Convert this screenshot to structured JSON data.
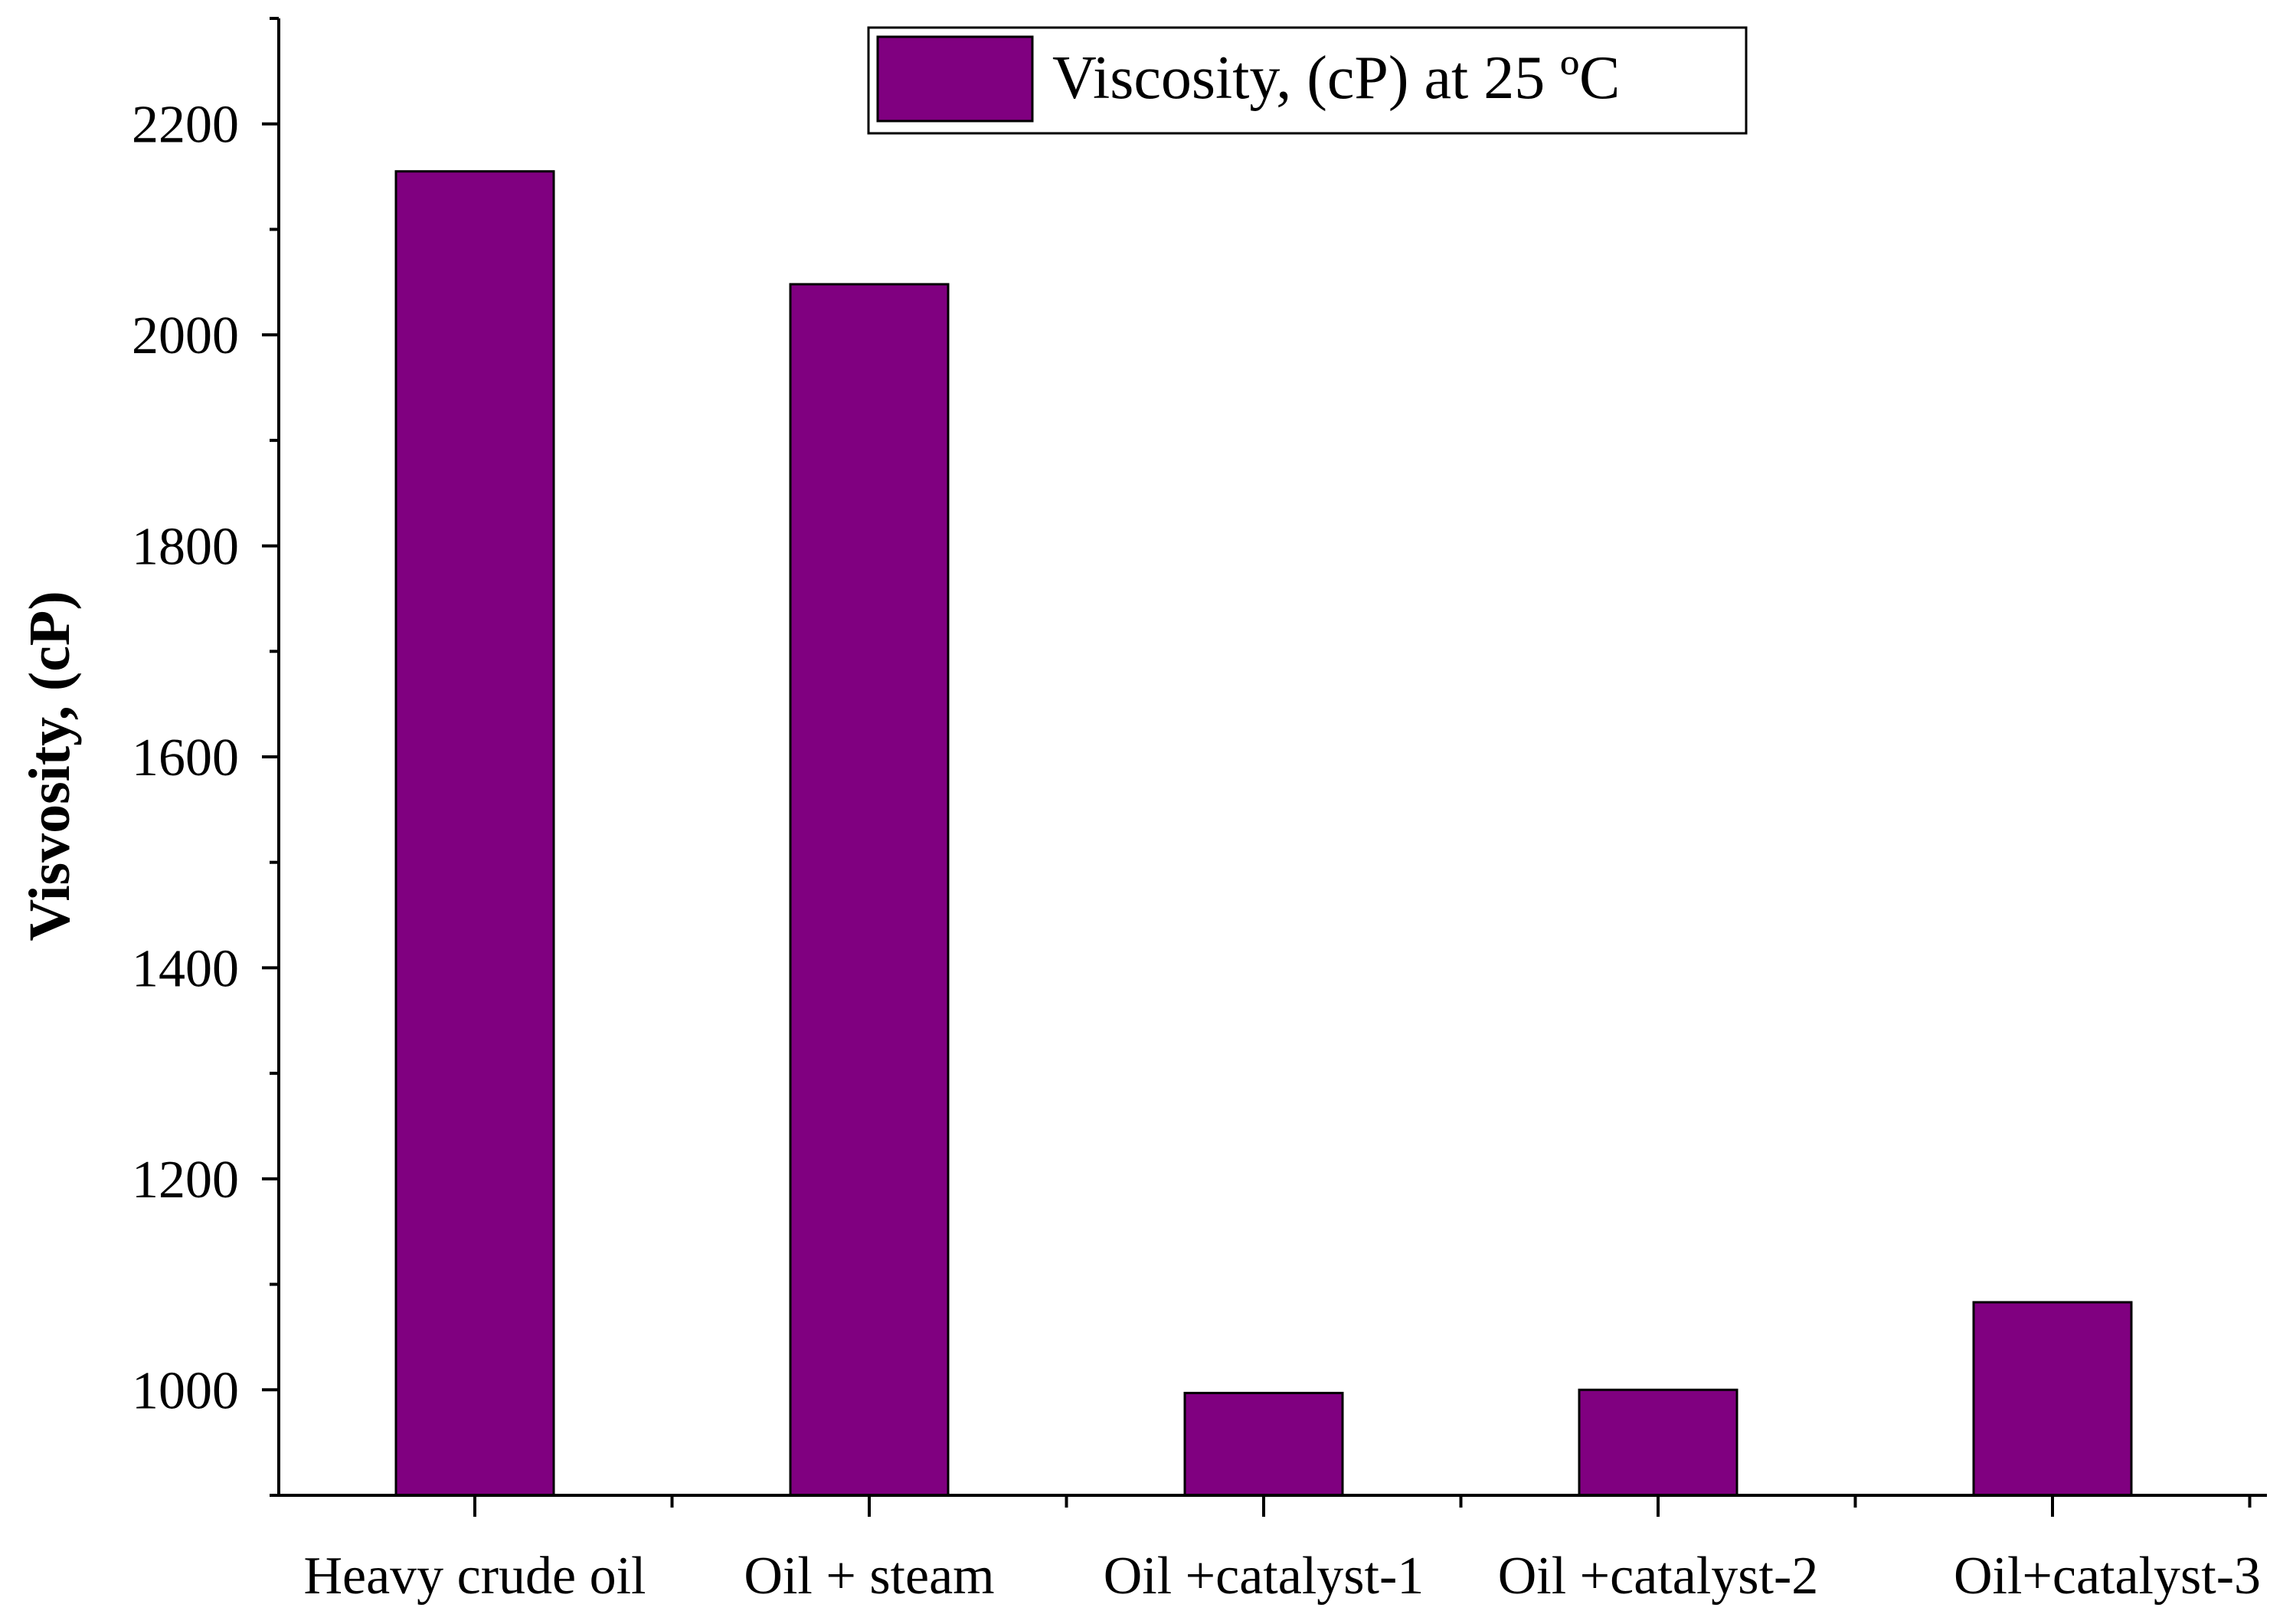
{
  "colors": {
    "bar": "#800080",
    "axis": "#000000",
    "background": "#ffffff"
  },
  "chart_data": {
    "type": "bar",
    "title": "",
    "xlabel": "",
    "ylabel": "Visvosity,  (cP)",
    "ylim": [
      900,
      2300
    ],
    "yticks": [
      1000,
      1200,
      1400,
      1600,
      1800,
      2000,
      2200
    ],
    "ytick_labels": [
      "1000",
      "1200",
      "1400",
      "1600",
      "1800",
      "2000",
      "2200"
    ],
    "yminor_step": 100,
    "categories": [
      "Heavy crude oil",
      "Oil + steam",
      "Oil +catalyst-1",
      "Oil +catalyst-2",
      "Oil+catalyst-3"
    ],
    "series": [
      {
        "name": "Viscosity, (cP) at 25 ºC",
        "values": [
          2155,
          2048,
          997,
          1000,
          1083
        ]
      }
    ],
    "legend": {
      "position": "top-center",
      "entries": [
        "Viscosity, (cP) at 25 ºC"
      ]
    },
    "grid": false
  }
}
